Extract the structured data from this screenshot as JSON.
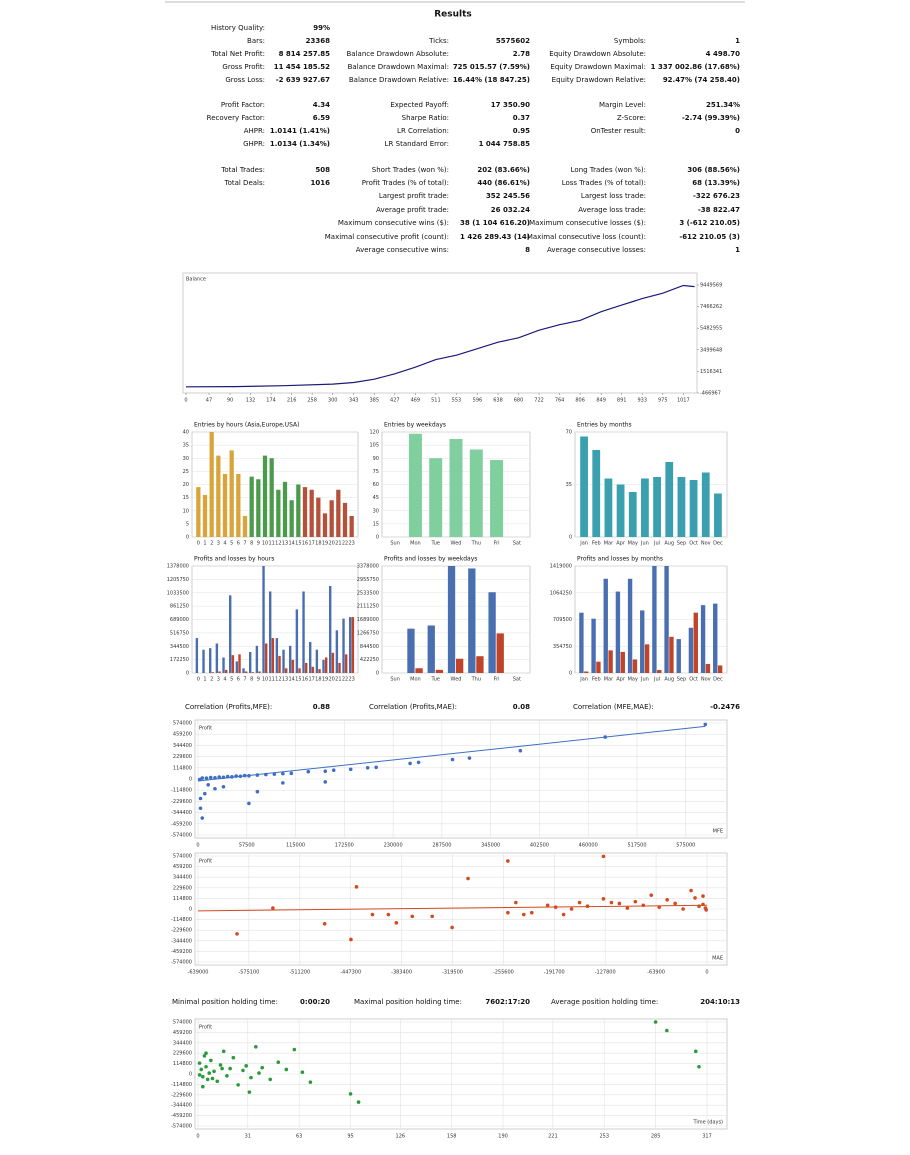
{
  "results": {
    "title": "Results",
    "rows": [
      [
        [
          "History Quality:",
          "99%"
        ],
        null,
        null
      ],
      [
        [
          "Bars:",
          "23368"
        ],
        [
          "Ticks:",
          "5575602"
        ],
        [
          "Symbols:",
          "1"
        ]
      ],
      [
        [
          "Total Net Profit:",
          "8 814 257.85"
        ],
        [
          "Balance Drawdown Absolute:",
          "2.78"
        ],
        [
          "Equity Drawdown Absolute:",
          "4 498.70"
        ]
      ],
      [
        [
          "Gross Profit:",
          "11 454 185.52"
        ],
        [
          "Balance Drawdown Maximal:",
          "725 015.57 (7.59%)"
        ],
        [
          "Equity Drawdown Maximal:",
          "1 337 002.86 (17.68%)"
        ]
      ],
      [
        [
          "Gross Loss:",
          "-2 639 927.67"
        ],
        [
          "Balance Drawdown Relative:",
          "16.44% (18 847.25)"
        ],
        [
          "Equity Drawdown Relative:",
          "92.47% (74 258.40)"
        ]
      ],
      [
        [
          "Profit Factor:",
          "4.34"
        ],
        [
          "Expected Payoff:",
          "17 350.90"
        ],
        [
          "Margin Level:",
          "251.34%"
        ]
      ],
      [
        [
          "Recovery Factor:",
          "6.59"
        ],
        [
          "Sharpe Ratio:",
          "0.37"
        ],
        [
          "Z-Score:",
          "-2.74 (99.39%)"
        ]
      ],
      [
        [
          "AHPR:",
          "1.0141 (1.41%)"
        ],
        [
          "LR Correlation:",
          "0.95"
        ],
        [
          "OnTester result:",
          "0"
        ]
      ],
      [
        [
          "GHPR:",
          "1.0134 (1.34%)"
        ],
        [
          "LR Standard Error:",
          "1 044 758.85"
        ],
        null
      ],
      [
        [
          "Total Trades:",
          "508"
        ],
        [
          "Short Trades (won %):",
          "202 (83.66%)"
        ],
        [
          "Long Trades (won %):",
          "306 (88.56%)"
        ]
      ],
      [
        [
          "Total Deals:",
          "1016"
        ],
        [
          "Profit Trades (% of total):",
          "440 (86.61%)"
        ],
        [
          "Loss Trades (% of total):",
          "68 (13.39%)"
        ]
      ],
      [
        null,
        [
          "Largest profit trade:",
          "352 245.56"
        ],
        [
          "Largest loss trade:",
          "-322 676.23"
        ]
      ],
      [
        null,
        [
          "Average profit trade:",
          "26 032.24"
        ],
        [
          "Average loss trade:",
          "-38 822.47"
        ]
      ],
      [
        null,
        [
          "Maximum consecutive wins ($):",
          "38 (1 104 616.20)"
        ],
        [
          "Maximum consecutive losses ($):",
          "3 (-612 210.05)"
        ]
      ],
      [
        null,
        [
          "Maximal consecutive profit (count):",
          "1 426 289.43 (14)"
        ],
        [
          "Maximal consecutive loss (count):",
          "-612 210.05 (3)"
        ]
      ],
      [
        null,
        [
          "Average consecutive wins:",
          "8"
        ],
        [
          "Average consecutive losses:",
          "1"
        ]
      ]
    ]
  },
  "correlation": [
    [
      "Correlation (Profits,MFE):",
      "0.88"
    ],
    [
      "Correlation (Profits,MAE):",
      "0.08"
    ],
    [
      "Correlation (MFE,MAE):",
      "-0.2476"
    ]
  ],
  "holding_times": [
    [
      "Minimal position holding time:",
      "0:00:20"
    ],
    [
      "Maximal position holding time:",
      "7602:17:20"
    ],
    [
      "Average position holding time:",
      "204:10:13"
    ]
  ],
  "chart_data": [
    {
      "type": "line",
      "title": "Balance",
      "color": "#1a1a7a",
      "yaxis_position": "right",
      "grid": false,
      "x": [
        0,
        100,
        200,
        300,
        343,
        385,
        427,
        469,
        511,
        553,
        596,
        638,
        680,
        722,
        764,
        806,
        849,
        891,
        933,
        975,
        1017,
        1040
      ],
      "values": [
        100000,
        120000,
        200000,
        350000,
        500000,
        800000,
        1300000,
        1900000,
        2600000,
        3000000,
        3600000,
        4200000,
        4600000,
        5300000,
        5800000,
        6200000,
        7000000,
        7600000,
        8200000,
        8700000,
        9400000,
        9300000
      ],
      "xlim": [
        0,
        1045
      ],
      "xticks": [
        0,
        47,
        90,
        132,
        174,
        216,
        258,
        300,
        343,
        385,
        427,
        469,
        511,
        553,
        596,
        638,
        680,
        722,
        764,
        806,
        849,
        891,
        933,
        975,
        1017
      ],
      "ylim": [
        -466967,
        10550000
      ],
      "yticks": [
        -466967,
        1516341,
        3499648,
        5482955,
        7466262,
        9449569
      ]
    },
    {
      "type": "bar",
      "title": "Entries by hours (Asia,Europe,USA)",
      "grid": true,
      "categories": [
        "0",
        "1",
        "2",
        "3",
        "4",
        "5",
        "6",
        "7",
        "8",
        "9",
        "10",
        "11",
        "12",
        "13",
        "14",
        "15",
        "16",
        "17",
        "18",
        "19",
        "20",
        "21",
        "22",
        "23"
      ],
      "values": [
        19,
        16,
        40,
        31,
        24,
        33,
        24,
        8,
        23,
        22,
        31,
        30,
        18,
        21,
        14,
        20,
        19,
        18,
        15,
        9,
        14,
        18,
        13,
        8
      ],
      "colors": [
        "#d9a43a",
        "#d9a43a",
        "#d9a43a",
        "#d9a43a",
        "#d9a43a",
        "#d9a43a",
        "#d9a43a",
        "#d9a43a",
        "#4c9a4c",
        "#4c9a4c",
        "#4c9a4c",
        "#4c9a4c",
        "#4c9a4c",
        "#4c9a4c",
        "#4c9a4c",
        "#4c9a4c",
        "#b5503a",
        "#b5503a",
        "#b5503a",
        "#b5503a",
        "#b5503a",
        "#b5503a",
        "#b5503a",
        "#b5503a"
      ],
      "ylim": [
        0,
        40
      ],
      "yticks": [
        0,
        5,
        10,
        15,
        20,
        25,
        30,
        35,
        40
      ]
    },
    {
      "type": "bar",
      "title": "Entries by weekdays",
      "grid": true,
      "color": "#7fcf9f",
      "categories": [
        "Sun",
        "Mon",
        "Tue",
        "Wed",
        "Thu",
        "Fri",
        "Sat"
      ],
      "values": [
        0,
        118,
        90,
        112,
        100,
        88,
        0
      ],
      "ylim": [
        0,
        120
      ],
      "yticks": [
        0,
        15,
        30,
        45,
        60,
        75,
        90,
        105,
        120
      ]
    },
    {
      "type": "bar",
      "title": "Entries by months",
      "grid": true,
      "color": "#3aa0b0",
      "categories": [
        "Jan",
        "Feb",
        "Mar",
        "Apr",
        "May",
        "Jun",
        "Jul",
        "Aug",
        "Sep",
        "Oct",
        "Nov",
        "Dec"
      ],
      "values": [
        67,
        58,
        39,
        35,
        30,
        39,
        40,
        50,
        40,
        38,
        43,
        29
      ],
      "ylim": [
        0,
        70
      ],
      "yticks": [
        0,
        35,
        70
      ]
    },
    {
      "type": "bar",
      "title": "Profits and losses by hours",
      "grid": true,
      "categories": [
        "0",
        "1",
        "2",
        "3",
        "4",
        "5",
        "6",
        "7",
        "8",
        "9",
        "10",
        "11",
        "12",
        "13",
        "14",
        "15",
        "16",
        "17",
        "18",
        "19",
        "20",
        "21",
        "22",
        "23"
      ],
      "series": [
        {
          "color": "#4a6fb0",
          "values": [
            450000,
            300000,
            320000,
            380000,
            200000,
            1000000,
            150000,
            60000,
            270000,
            350000,
            1378000,
            1050000,
            450000,
            300000,
            350000,
            820000,
            1050000,
            400000,
            300000,
            170000,
            1120000,
            550000,
            700000,
            720000
          ]
        },
        {
          "color": "#c0442a",
          "values": [
            0,
            0,
            10000,
            20000,
            40000,
            230000,
            240000,
            20000,
            10000,
            20000,
            380000,
            450000,
            220000,
            60000,
            170000,
            60000,
            130000,
            80000,
            50000,
            200000,
            260000,
            130000,
            240000,
            720000
          ]
        }
      ],
      "ylim": [
        0,
        1378000
      ],
      "yticks": [
        0,
        172250,
        344500,
        516750,
        689000,
        861250,
        1033500,
        1205750,
        1378000
      ]
    },
    {
      "type": "bar",
      "title": "Profits and losses by weekdays",
      "grid": true,
      "categories": [
        "Sun",
        "Mon",
        "Tue",
        "Wed",
        "Thu",
        "Fri",
        "Sat"
      ],
      "series": [
        {
          "color": "#4a6fb0",
          "values": [
            0,
            1400000,
            1500000,
            3378000,
            3300000,
            2550000,
            0
          ]
        },
        {
          "color": "#c0442a",
          "values": [
            0,
            150000,
            100000,
            450000,
            530000,
            1250000,
            0
          ]
        }
      ],
      "ylim": [
        0,
        3378000
      ],
      "yticks": [
        0,
        422250,
        844500,
        1266750,
        1689000,
        2111250,
        2533500,
        2955750,
        3378000
      ]
    },
    {
      "type": "bar",
      "title": "Profits and losses by months",
      "grid": true,
      "categories": [
        "Jan",
        "Feb",
        "Mar",
        "Apr",
        "May",
        "Jun",
        "Jul",
        "Aug",
        "Sep",
        "Oct",
        "Nov",
        "Dec"
      ],
      "series": [
        {
          "color": "#4a6fb0",
          "values": [
            800000,
            720000,
            1250000,
            1080000,
            1250000,
            830000,
            1419000,
            1419000,
            450000,
            600000,
            900000,
            920000
          ]
        },
        {
          "color": "#c0442a",
          "values": [
            20000,
            150000,
            300000,
            280000,
            180000,
            380000,
            40000,
            480000,
            0,
            800000,
            120000,
            100000
          ]
        }
      ],
      "ylim": [
        0,
        1419000
      ],
      "yticks": [
        0,
        354750,
        709500,
        1064250,
        1419000
      ]
    },
    {
      "type": "scatter",
      "y_label": "Profit",
      "x_label": "MFE",
      "color": "#3e6fc4",
      "grid": true,
      "x": [
        2000,
        5000,
        10000,
        15000,
        20000,
        25000,
        30000,
        35000,
        40000,
        45000,
        50000,
        55000,
        60000,
        70000,
        80000,
        90000,
        100000,
        110000,
        130000,
        150000,
        160000,
        180000,
        200000,
        210000,
        250000,
        260000,
        300000,
        320000,
        380000,
        480000,
        598000,
        3000,
        3000,
        5000,
        8000,
        20000,
        30000,
        60000,
        70000,
        100000,
        150000,
        12000
      ],
      "values": [
        -5000,
        10000,
        8000,
        15000,
        12000,
        20000,
        18000,
        25000,
        22000,
        30000,
        28000,
        35000,
        33000,
        40000,
        45000,
        50000,
        55000,
        58000,
        75000,
        80000,
        90000,
        100000,
        115000,
        120000,
        160000,
        170000,
        200000,
        215000,
        290000,
        430000,
        560000,
        -200000,
        -300000,
        -400000,
        -150000,
        -100000,
        -80000,
        -250000,
        -130000,
        -40000,
        -30000,
        -60000
      ],
      "trend": {
        "x": [
          0,
          598000
        ],
        "y": [
          -20000,
          540000
        ]
      },
      "xlim": [
        0,
        600000
      ],
      "xticks": [
        0,
        57500,
        115000,
        172500,
        230000,
        287500,
        345000,
        402500,
        460000,
        517500,
        575000
      ],
      "ylim": [
        -574000,
        574000
      ],
      "yticks": [
        -574000,
        -459200,
        -344400,
        -229600,
        -114800,
        0,
        114800,
        229600,
        344400,
        459200,
        574000
      ]
    },
    {
      "type": "scatter",
      "y_label": "Profit",
      "x_label": "MAE",
      "color": "#d24a1e",
      "grid": true,
      "x": [
        -590000,
        -545000,
        -480000,
        -447000,
        -440000,
        -420000,
        -400000,
        -390000,
        -370000,
        -345000,
        -320000,
        -300000,
        -250000,
        -240000,
        -230000,
        -220000,
        -200000,
        -190000,
        -180000,
        -170000,
        -160000,
        -150000,
        -130000,
        -120000,
        -110000,
        -100000,
        -90000,
        -80000,
        -70000,
        -60000,
        -50000,
        -40000,
        -30000,
        -20000,
        -15000,
        -10000,
        -5000,
        -2000,
        -1000,
        -250000,
        -130000,
        -5000
      ],
      "values": [
        -270000,
        10000,
        -160000,
        -330000,
        240000,
        -60000,
        -60000,
        -150000,
        -80000,
        -80000,
        -200000,
        330000,
        -40000,
        70000,
        -60000,
        -40000,
        40000,
        20000,
        -60000,
        0,
        70000,
        30000,
        110000,
        70000,
        60000,
        10000,
        80000,
        40000,
        150000,
        20000,
        100000,
        60000,
        0,
        200000,
        120000,
        30000,
        50000,
        10000,
        -10000,
        520000,
        570000,
        140000
      ],
      "trend": {
        "x": [
          -639000,
          0
        ],
        "y": [
          -20000,
          40000
        ]
      },
      "xlim": [
        -639000,
        0
      ],
      "xticks": [
        -639000,
        -575100,
        -511200,
        -447300,
        -383400,
        -319500,
        -255600,
        -191700,
        -127800,
        -63900,
        0
      ],
      "ylim": [
        -574000,
        574000
      ],
      "yticks": [
        -574000,
        -459200,
        -344400,
        -229600,
        -114800,
        0,
        114800,
        229600,
        344400,
        459200,
        574000
      ]
    },
    {
      "type": "scatter",
      "y_label": "Profit",
      "x_label": "Time (days)",
      "color": "#2a9a3a",
      "grid": true,
      "x": [
        1,
        2,
        3,
        4,
        5,
        6,
        8,
        10,
        12,
        14,
        16,
        18,
        20,
        22,
        25,
        28,
        30,
        33,
        36,
        40,
        45,
        50,
        55,
        60,
        65,
        70,
        3,
        5,
        7,
        9,
        15,
        32,
        95,
        100,
        285,
        292,
        310,
        312,
        1,
        38
      ],
      "values": [
        120000,
        50000,
        -30000,
        200000,
        80000,
        -60000,
        150000,
        30000,
        -80000,
        100000,
        250000,
        -20000,
        60000,
        180000,
        -120000,
        40000,
        90000,
        -40000,
        300000,
        70000,
        -60000,
        130000,
        50000,
        270000,
        20000,
        -90000,
        -140000,
        230000,
        10000,
        -50000,
        60000,
        -200000,
        -220000,
        -310000,
        574000,
        480000,
        250000,
        80000,
        -10000,
        10000
      ],
      "xlim": [
        0,
        317
      ],
      "xticks": [
        0,
        31,
        63,
        95,
        126,
        158,
        190,
        221,
        253,
        285,
        317
      ],
      "ylim": [
        -574000,
        574000
      ],
      "yticks": [
        -574000,
        -459200,
        -344400,
        -229600,
        -114800,
        0,
        114800,
        229600,
        344400,
        459200,
        574000
      ]
    }
  ]
}
